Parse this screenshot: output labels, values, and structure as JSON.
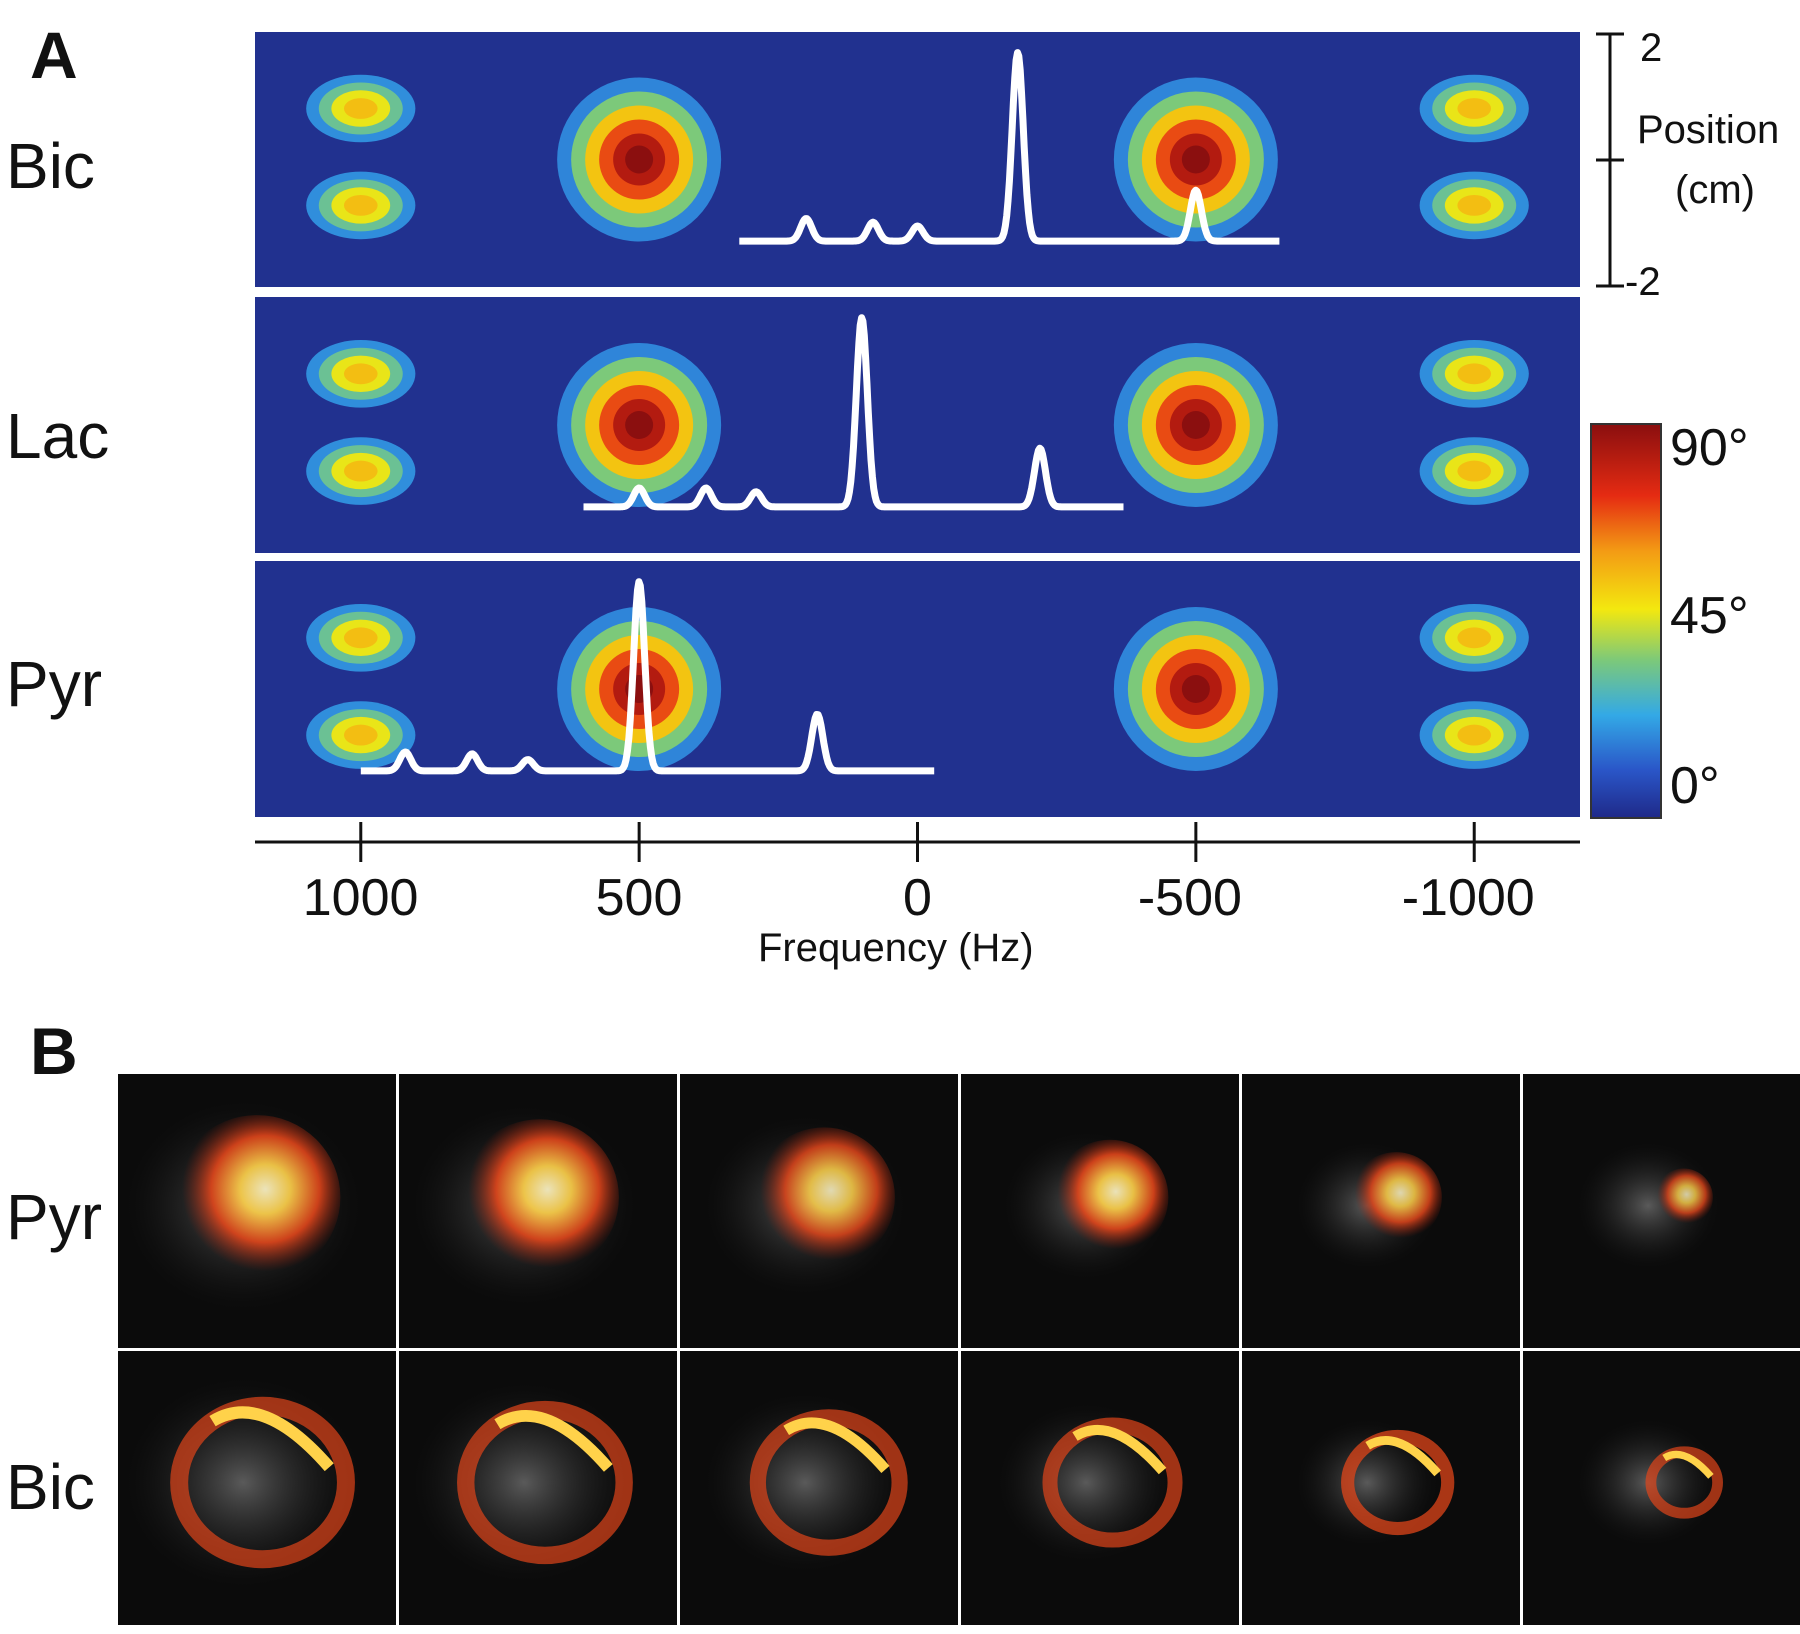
{
  "panel_a": {
    "letter": "A",
    "rows": [
      {
        "label": "Bic",
        "peaks": [
          {
            "freq": 200,
            "height": 0.12
          },
          {
            "freq": 80,
            "height": 0.1
          },
          {
            "freq": 0,
            "height": 0.08
          },
          {
            "freq": -180,
            "height": 1.0
          },
          {
            "freq": -500,
            "height": 0.27
          }
        ]
      },
      {
        "label": "Lac",
        "peaks": [
          {
            "freq": 500,
            "height": 0.1
          },
          {
            "freq": 380,
            "height": 0.1
          },
          {
            "freq": 290,
            "height": 0.08
          },
          {
            "freq": 100,
            "height": 1.0
          },
          {
            "freq": -220,
            "height": 0.31
          }
        ]
      },
      {
        "label": "Pyr",
        "peaks": [
          {
            "freq": 920,
            "height": 0.1
          },
          {
            "freq": 800,
            "height": 0.09
          },
          {
            "freq": 700,
            "height": 0.06
          },
          {
            "freq": 500,
            "height": 1.0
          },
          {
            "freq": 180,
            "height": 0.3
          }
        ]
      }
    ],
    "spectrum_ranges": [
      [
        320,
        -650
      ],
      [
        600,
        -370
      ],
      [
        1000,
        -30
      ]
    ],
    "excitation": [
      {
        "freq": 1000,
        "flip_deg": 55,
        "shape": "double"
      },
      {
        "freq": 500,
        "flip_deg": 90,
        "shape": "single"
      },
      {
        "freq": -500,
        "flip_deg": 90,
        "shape": "single"
      },
      {
        "freq": -1000,
        "flip_deg": 55,
        "shape": "double"
      }
    ],
    "position_scale": {
      "label_line1": "Position",
      "label_line2": "(cm)",
      "top": "2",
      "bottom": "-2"
    },
    "colorbar": {
      "ticks": [
        "90°",
        "45°",
        "0°"
      ]
    },
    "x_axis": {
      "label": "Frequency (Hz)",
      "ticks": [
        "1000",
        "500",
        "0",
        "-500",
        "-1000"
      ],
      "range": [
        1190,
        -1190
      ]
    }
  },
  "panel_b": {
    "letter": "B",
    "rows": [
      {
        "label": "Pyr",
        "slices": [
          {
            "intensity": 0.9,
            "size": 1.0
          },
          {
            "intensity": 0.9,
            "size": 0.95
          },
          {
            "intensity": 0.85,
            "size": 0.85
          },
          {
            "intensity": 0.9,
            "size": 0.7
          },
          {
            "intensity": 0.85,
            "size": 0.55
          },
          {
            "intensity": 0.8,
            "size": 0.35
          }
        ]
      },
      {
        "label": "Bic",
        "slices": [
          {
            "intensity": 0.7,
            "size": 1.0
          },
          {
            "intensity": 0.7,
            "size": 0.95
          },
          {
            "intensity": 0.7,
            "size": 0.85
          },
          {
            "intensity": 0.7,
            "size": 0.75
          },
          {
            "intensity": 0.75,
            "size": 0.6
          },
          {
            "intensity": 0.7,
            "size": 0.4
          }
        ]
      }
    ]
  },
  "colors": {
    "map_background": "#21318f",
    "spectrum": "#ffffff",
    "mri_background": "#0b0b0b",
    "signal": "#ffd24a"
  }
}
